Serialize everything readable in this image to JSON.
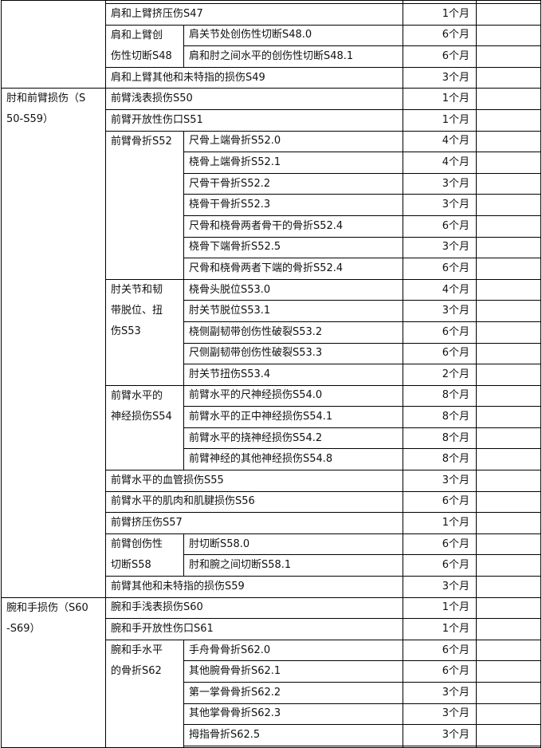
{
  "groups": [
    {
      "title": "",
      "rows": [
        {
          "name": "肩和上臂挤压伤S47",
          "duration": "1个月"
        },
        {
          "sub": "肩和上臂创\n伤性切断S48",
          "items": [
            {
              "name": "肩关节处创伤性切断S48.0",
              "duration": "6个月"
            },
            {
              "name": "肩和肘之间水平的创伤性切断S48.1",
              "duration": "6个月"
            }
          ]
        },
        {
          "name": "肩和上臂其他和未特指的损伤S49",
          "duration": "3个月"
        }
      ]
    },
    {
      "title": "肘和前臂损伤（S\n50-S59）",
      "rows": [
        {
          "name": "前臂浅表损伤S50",
          "duration": "1个月"
        },
        {
          "name": "前臂开放性伤口S51",
          "duration": "1个月"
        },
        {
          "sub": "前臂骨折S52",
          "items": [
            {
              "name": "尺骨上端骨折S52.0",
              "duration": "4个月"
            },
            {
              "name": "桡骨上端骨折S52.1",
              "duration": "4个月"
            },
            {
              "name": "尺骨干骨折S52.2",
              "duration": "3个月"
            },
            {
              "name": "桡骨干骨折S52.3",
              "duration": "3个月"
            },
            {
              "name": "尺骨和桡骨两者骨干的骨折S52.4",
              "duration": "6个月"
            },
            {
              "name": "桡骨下端骨折S52.5",
              "duration": "3个月"
            },
            {
              "name": "尺骨和桡骨两者下端的骨折S52.4",
              "duration": "6个月"
            }
          ]
        },
        {
          "sub": "肘关节和韧\n带脱位、扭\n伤S53",
          "items": [
            {
              "name": "桡骨头脱位S53.0",
              "duration": "4个月"
            },
            {
              "name": "肘关节脱位S53.1",
              "duration": "3个月"
            },
            {
              "name": "桡侧副韧带创伤性破裂S53.2",
              "duration": "6个月"
            },
            {
              "name": "尺侧副韧带创伤性破裂S53.3",
              "duration": "6个月"
            },
            {
              "name": "肘关节扭伤S53.4",
              "duration": "2个月"
            }
          ]
        },
        {
          "sub": "前臂水平的\n神经损伤S54",
          "items": [
            {
              "name": "前臂水平的尺神经损伤S54.0",
              "duration": "8个月"
            },
            {
              "name": "前臂水平的正中神经损伤S54.1",
              "duration": "8个月"
            },
            {
              "name": "前臂水平的挠神经损伤S54.2",
              "duration": "8个月"
            },
            {
              "name": "前臂神经的其他神经损伤S54.8",
              "duration": "8个月"
            }
          ]
        },
        {
          "name": "前臂水平的血管损伤S55",
          "duration": "3个月"
        },
        {
          "name": "前臂水平的肌肉和肌腱损伤S56",
          "duration": "6个月"
        },
        {
          "name": "前臂挤压伤S57",
          "duration": "1个月"
        },
        {
          "sub": "前臂创伤性\n切断S58",
          "items": [
            {
              "name": "肘切断S58.0",
              "duration": "6个月"
            },
            {
              "name": "肘和腕之间切断S58.1",
              "duration": "6个月"
            }
          ]
        },
        {
          "name": "前臂其他和未特指的损伤S59",
          "duration": "3个月"
        }
      ]
    },
    {
      "title": "腕和手损伤（S60\n-S69）",
      "rows": [
        {
          "name": "腕和手浅表损伤S60",
          "duration": "1个月"
        },
        {
          "name": "腕和手开放性伤口S61",
          "duration": "1个月"
        },
        {
          "sub": "腕和手水平\n的骨折S62",
          "items": [
            {
              "name": "手舟骨骨折S62.0",
              "duration": "6个月"
            },
            {
              "name": "其他腕骨骨折S62.1",
              "duration": "6个月"
            },
            {
              "name": "第一掌骨骨折S62.2",
              "duration": "3个月"
            },
            {
              "name": "其他掌骨骨折S62.3",
              "duration": "3个月"
            },
            {
              "name": "拇指骨折S62.5",
              "duration": "3个月"
            },
            {
              "name": "",
              "duration": ""
            }
          ]
        }
      ]
    }
  ]
}
